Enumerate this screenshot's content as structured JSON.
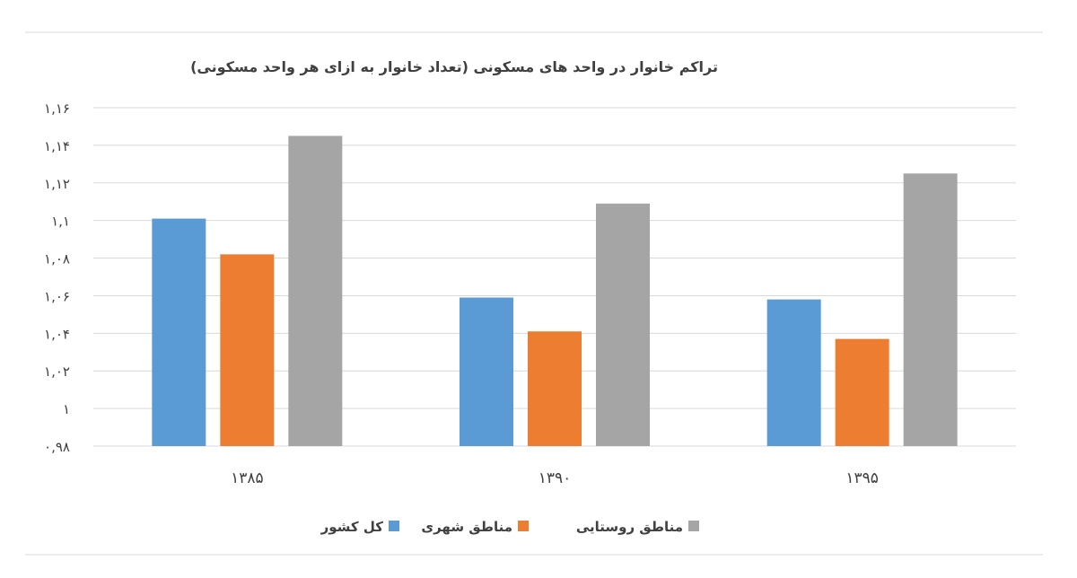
{
  "chart_data": {
    "type": "bar",
    "title": "تراکم خانوار در واحد های مسکونی (تعداد خانوار به ازای هر واحد مسکونی)",
    "categories": [
      "۱۳۸۵",
      "۱۳۹۰",
      "۱۳۹۵"
    ],
    "series": [
      {
        "name": "کل کشور",
        "color": "#5B9BD5",
        "values": [
          1.101,
          1.059,
          1.058
        ]
      },
      {
        "name": "مناطق شهری",
        "color": "#ED7D31",
        "values": [
          1.082,
          1.041,
          1.037
        ]
      },
      {
        "name": "مناطق روستایی",
        "color": "#A5A5A5",
        "values": [
          1.145,
          1.109,
          1.125
        ]
      }
    ],
    "ylim": [
      0.98,
      1.16
    ],
    "yticks": [
      0.98,
      1.0,
      1.02,
      1.04,
      1.06,
      1.08,
      1.1,
      1.12,
      1.14,
      1.16
    ],
    "ytick_labels": [
      "۰,۹۸",
      "۱",
      "۱,۰۲",
      "۱,۰۴",
      "۱,۰۶",
      "۱,۰۸",
      "۱,۱",
      "۱,۱۲",
      "۱,۱۴",
      "۱,۱۶"
    ],
    "grid": true,
    "legend_position": "bottom"
  }
}
